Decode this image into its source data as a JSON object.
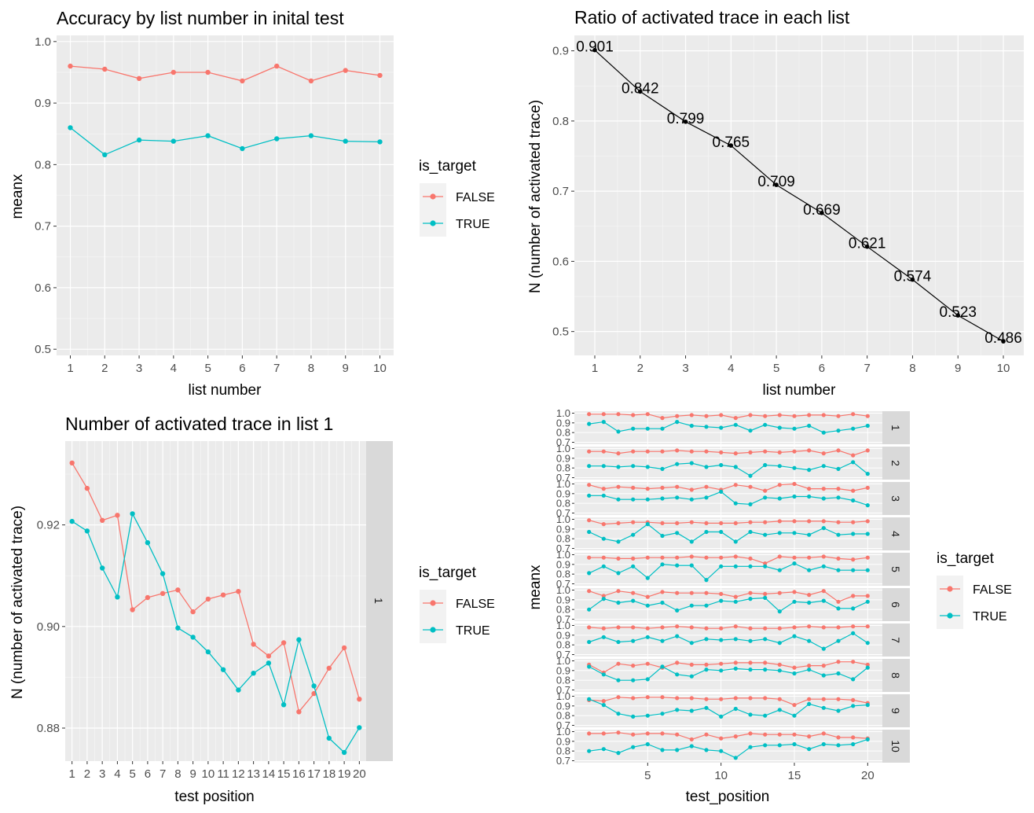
{
  "colors": {
    "false": "#F8766D",
    "true": "#00BFC4",
    "panel": "#EBEBEB",
    "strip": "#D9D9D9",
    "black": "#000000"
  },
  "legend": {
    "title": "is_target",
    "items": [
      "FALSE",
      "TRUE"
    ]
  },
  "chart_data": [
    {
      "id": "accuracy",
      "type": "line",
      "title": "Accuracy by list number in inital test",
      "xlabel": "list number",
      "ylabel": "meanx",
      "x": [
        1,
        2,
        3,
        4,
        5,
        6,
        7,
        8,
        9,
        10
      ],
      "xticks": [
        "1",
        "2",
        "3",
        "4",
        "5",
        "6",
        "7",
        "8",
        "9",
        "10"
      ],
      "yticks": [
        "0.5",
        "0.6",
        "0.7",
        "0.8",
        "0.9",
        "1.0"
      ],
      "ylim": [
        0.49,
        1.01
      ],
      "series": [
        {
          "name": "FALSE",
          "values": [
            0.96,
            0.955,
            0.94,
            0.95,
            0.95,
            0.936,
            0.96,
            0.936,
            0.953,
            0.945
          ]
        },
        {
          "name": "TRUE",
          "values": [
            0.86,
            0.816,
            0.84,
            0.838,
            0.847,
            0.826,
            0.842,
            0.847,
            0.838,
            0.837
          ]
        }
      ],
      "legend": "right",
      "grid": true
    },
    {
      "id": "ratio",
      "type": "line",
      "title": "Ratio of activated trace in each list",
      "xlabel": "list number",
      "ylabel": "N (number of activated trace)",
      "x": [
        1,
        2,
        3,
        4,
        5,
        6,
        7,
        8,
        9,
        10
      ],
      "xticks": [
        "1",
        "2",
        "3",
        "4",
        "5",
        "6",
        "7",
        "8",
        "9",
        "10"
      ],
      "yticks": [
        "0.5",
        "0.6",
        "0.7",
        "0.8",
        "0.9"
      ],
      "ylim": [
        0.466,
        0.922
      ],
      "values": [
        0.901,
        0.842,
        0.799,
        0.765,
        0.709,
        0.669,
        0.621,
        0.574,
        0.523,
        0.486
      ],
      "labels": [
        "0.901",
        "0.842",
        "0.799",
        "0.765",
        "0.709",
        "0.669",
        "0.621",
        "0.574",
        "0.523",
        "0.486"
      ],
      "grid": true
    },
    {
      "id": "list1",
      "type": "line",
      "title": "Number of activated trace in list 1",
      "xlabel": "test position",
      "ylabel": "N (number of activated trace)",
      "x": [
        1,
        2,
        3,
        4,
        5,
        6,
        7,
        8,
        9,
        10,
        11,
        12,
        13,
        14,
        15,
        16,
        17,
        18,
        19,
        20
      ],
      "xticks": [
        "1",
        "2",
        "3",
        "4",
        "5",
        "6",
        "7",
        "8",
        "9",
        "10",
        "11",
        "12",
        "13",
        "14",
        "15",
        "16",
        "17",
        "18",
        "19",
        "20"
      ],
      "yticks": [
        "0.88",
        "0.90",
        "0.92"
      ],
      "ylim": [
        0.8735,
        0.9365
      ],
      "strip": "1",
      "series": [
        {
          "name": "FALSE",
          "values": [
            0.9322,
            0.9272,
            0.9209,
            0.9219,
            0.9033,
            0.9057,
            0.9065,
            0.9072,
            0.9029,
            0.9054,
            0.9062,
            0.9069,
            0.8965,
            0.8942,
            0.8968,
            0.8832,
            0.8868,
            0.8918,
            0.8958,
            0.8857
          ]
        },
        {
          "name": "TRUE",
          "values": [
            0.9207,
            0.9188,
            0.9115,
            0.9058,
            0.9222,
            0.9165,
            0.9104,
            0.8997,
            0.8979,
            0.895,
            0.8915,
            0.8875,
            0.8908,
            0.8928,
            0.8846,
            0.8974,
            0.8883,
            0.878,
            0.8752,
            0.8801
          ]
        }
      ],
      "legend": "right",
      "grid": true
    },
    {
      "id": "facets",
      "type": "line",
      "xlabel": "test_position",
      "ylabel": "meanx",
      "xticks": [
        "5",
        "10",
        "15",
        "20"
      ],
      "yticks": [
        "0.7",
        "0.8",
        "0.9",
        "1.0"
      ],
      "ylim": [
        0.68,
        1.02
      ],
      "legend": "right",
      "facets": [
        {
          "label": "1",
          "false": [
            0.99,
            0.99,
            0.99,
            0.98,
            0.99,
            0.95,
            0.97,
            0.98,
            0.97,
            0.98,
            0.95,
            0.98,
            0.97,
            0.98,
            0.97,
            0.98,
            0.98,
            0.97,
            0.99,
            0.97
          ],
          "true": [
            0.89,
            0.91,
            0.81,
            0.84,
            0.84,
            0.84,
            0.91,
            0.87,
            0.86,
            0.85,
            0.88,
            0.82,
            0.88,
            0.85,
            0.84,
            0.87,
            0.8,
            0.82,
            0.84,
            0.87
          ]
        },
        {
          "label": "2",
          "false": [
            0.97,
            0.97,
            0.95,
            0.97,
            0.97,
            0.97,
            0.98,
            0.97,
            0.97,
            0.96,
            0.95,
            0.96,
            0.97,
            0.96,
            0.97,
            0.98,
            0.95,
            0.98,
            0.93,
            0.98
          ]
        },
        {
          "label": "3",
          "false": [
            0.99,
            0.95,
            0.97,
            0.96,
            0.95,
            0.96,
            0.97,
            0.94,
            0.97,
            0.94,
            0.99,
            0.97,
            0.93,
            0.99,
            1.0,
            0.95,
            0.95,
            0.95,
            0.93,
            0.96
          ]
        },
        {
          "label": "4",
          "false": [
            0.99,
            0.95,
            0.96,
            0.97,
            0.97,
            0.96,
            0.96,
            0.97,
            0.96,
            0.96,
            0.96,
            0.97,
            0.97,
            0.98,
            0.98,
            0.98,
            0.98,
            0.97,
            0.97,
            0.98
          ]
        },
        {
          "label": "5",
          "false": [
            0.97,
            0.97,
            0.96,
            0.96,
            0.97,
            0.97,
            0.97,
            0.98,
            0.97,
            0.97,
            0.98,
            0.96,
            0.91,
            0.98,
            0.97,
            0.97,
            0.98,
            0.96,
            0.95,
            0.97
          ]
        },
        {
          "label": "6",
          "false": [
            0.99,
            0.94,
            0.99,
            0.97,
            0.93,
            0.98,
            0.97,
            0.97,
            0.97,
            0.96,
            0.93,
            0.97,
            0.96,
            0.97,
            0.98,
            0.95,
            0.99,
            0.88,
            0.94,
            0.94
          ]
        },
        {
          "label": "7",
          "false": [
            0.98,
            0.97,
            0.98,
            0.98,
            0.97,
            0.98,
            0.99,
            0.98,
            0.97,
            0.97,
            0.99,
            0.97,
            0.97,
            0.97,
            0.98,
            0.99,
            0.98,
            0.98,
            0.99,
            0.99
          ]
        },
        {
          "label": "8",
          "false": [
            0.96,
            0.88,
            0.97,
            0.95,
            0.97,
            0.93,
            0.98,
            0.96,
            0.96,
            0.97,
            0.98,
            0.98,
            0.98,
            0.96,
            0.93,
            0.95,
            0.95,
            0.99,
            0.99,
            0.96
          ]
        },
        {
          "label": "9",
          "false": [
            0.96,
            0.95,
            0.99,
            0.98,
            0.99,
            0.99,
            0.98,
            0.98,
            0.97,
            0.97,
            0.98,
            0.98,
            0.98,
            0.97,
            0.91,
            0.97,
            0.97,
            0.97,
            0.96,
            0.93
          ]
        },
        {
          "label": "10",
          "false": [
            0.98,
            0.98,
            0.99,
            0.97,
            0.98,
            0.98,
            0.97,
            0.92,
            0.97,
            0.93,
            0.95,
            0.98,
            0.97,
            0.97,
            0.97,
            0.95,
            0.98,
            0.94,
            0.94,
            0.93
          ]
        }
      ]
    }
  ]
}
